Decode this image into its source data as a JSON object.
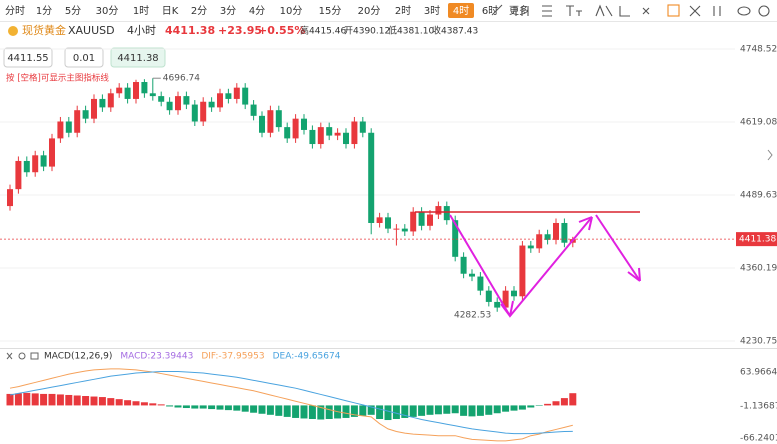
{
  "toolbar": {
    "intervals": [
      "分时",
      "1分",
      "5分",
      "30分",
      "1时",
      "日K",
      "2分",
      "3分",
      "4分",
      "10分",
      "15分",
      "20分",
      "2时",
      "3时",
      "4时",
      "6时",
      "更多"
    ],
    "active": 14
  },
  "header": {
    "name": "现货黄金",
    "symbol": "XAUUSD",
    "period": "4小时",
    "change": "+23.95",
    "percent": "+0.55%",
    "high": "高4415.46",
    "open": "开4390.12",
    "low": "低4381.10",
    "close": "收4387.43"
  },
  "order": {
    "sell": "4411.55",
    "lot": "0.01",
    "buy": "4411.38",
    "hint": "按 [空格]可显示主图指标线"
  },
  "chart_data": [
    {
      "type": "candlestick",
      "up_color": "#e8383d",
      "down_color": "#13a36f",
      "open": [
        4470,
        4500,
        4550,
        4530,
        4560,
        4540,
        4590,
        4620,
        4600,
        4640,
        4625,
        4660,
        4645,
        4670,
        4680,
        4660,
        4690,
        4670,
        4665,
        4655,
        4640,
        4665,
        4650,
        4620,
        4655,
        4645,
        4670,
        4660,
        4680,
        4650,
        4630,
        4600,
        4640,
        4610,
        4590,
        4625,
        4605,
        4580,
        4610,
        4595,
        4600,
        4580,
        4620,
        4600,
        4440,
        4450,
        4430,
        4430,
        4425,
        4460,
        4435,
        4455,
        4470,
        4445,
        4380,
        4350,
        4345,
        4320,
        4300,
        4290,
        4320,
        4310,
        4400,
        4395,
        4420,
        4410,
        4440,
        4405
      ],
      "high": [
        4508,
        4558,
        4558,
        4568,
        4568,
        4598,
        4628,
        4628,
        4648,
        4648,
        4668,
        4668,
        4678,
        4688,
        4688,
        4694,
        4695,
        4696.74,
        4673,
        4663,
        4673,
        4673,
        4658,
        4663,
        4663,
        4678,
        4678,
        4688,
        4688,
        4658,
        4638,
        4648,
        4648,
        4618,
        4633,
        4633,
        4613,
        4618,
        4618,
        4608,
        4608,
        4628,
        4628,
        4608,
        4458,
        4458,
        4438,
        4438,
        4468,
        4468,
        4463,
        4478,
        4478,
        4453,
        4388,
        4358,
        4353,
        4328,
        4308,
        4328,
        4328,
        4408,
        4408,
        4428,
        4428,
        4448,
        4448,
        4415.46
      ],
      "low": [
        4462,
        4492,
        4522,
        4522,
        4532,
        4532,
        4582,
        4592,
        4592,
        4617,
        4617,
        4637,
        4637,
        4662,
        4652,
        4652,
        4662,
        4657,
        4647,
        4632,
        4632,
        4642,
        4612,
        4612,
        4637,
        4637,
        4652,
        4652,
        4642,
        4622,
        4592,
        4592,
        4602,
        4582,
        4582,
        4597,
        4572,
        4572,
        4587,
        4587,
        4572,
        4572,
        4592,
        4420,
        4432,
        4422,
        4400,
        4417,
        4417,
        4427,
        4427,
        4447,
        4437,
        4372,
        4342,
        4337,
        4312,
        4292,
        4282.53,
        4288,
        4302,
        4302,
        4387,
        4387,
        4402,
        4402,
        4397,
        4397
      ],
      "close": [
        4500,
        4550,
        4530,
        4560,
        4540,
        4590,
        4620,
        4600,
        4640,
        4625,
        4660,
        4645,
        4670,
        4680,
        4660,
        4690,
        4670,
        4665,
        4655,
        4640,
        4665,
        4650,
        4620,
        4655,
        4645,
        4670,
        4660,
        4680,
        4650,
        4630,
        4600,
        4640,
        4610,
        4590,
        4625,
        4605,
        4580,
        4610,
        4595,
        4600,
        4580,
        4620,
        4600,
        4440,
        4450,
        4430,
        4430,
        4425,
        4460,
        4435,
        4455,
        4470,
        4445,
        4380,
        4350,
        4345,
        4320,
        4300,
        4290,
        4320,
        4310,
        4400,
        4395,
        4420,
        4410,
        4440,
        4405,
        4411.38
      ],
      "ylim": [
        4218.3,
        4764.5
      ],
      "yticks": [
        4230.75,
        4360.19,
        4489.63,
        4619.08,
        4748.52
      ],
      "marked_high": 17,
      "marked_low": 58
    },
    {
      "type": "macd",
      "legend": [
        "MACD(12,26,9)",
        "MACD:23.39443",
        "DIF:-37.95953",
        "DEA:-49.65674"
      ],
      "legend_colors": [
        "#333333",
        "#a56de2",
        "#f5a15a",
        "#4aa3df"
      ],
      "up_color": "#e8383d",
      "down_color": "#13a36f",
      "histogram": [
        22,
        23,
        24,
        23,
        22,
        22,
        21,
        20,
        19,
        18,
        17,
        16,
        14,
        12,
        10,
        8,
        6,
        4,
        2,
        -2,
        -4,
        -5,
        -6,
        -6,
        -7,
        -8,
        -9,
        -10,
        -12,
        -14,
        -16,
        -18,
        -20,
        -22,
        -24,
        -25,
        -26,
        -27,
        -26,
        -25,
        -24,
        -22,
        -20,
        -18,
        -26,
        -28,
        -26,
        -24,
        -22,
        -20,
        -18,
        -17,
        -16,
        -15,
        -20,
        -21,
        -20,
        -18,
        -15,
        -12,
        -10,
        -8,
        -4,
        -1,
        3,
        8,
        14,
        23.39443
      ],
      "series": [
        {
          "color": "#f5a15a",
          "values": [
            33,
            36,
            40,
            44,
            48,
            52,
            56,
            60,
            63,
            66,
            68,
            69,
            70,
            70,
            69,
            68,
            66,
            64,
            61,
            58,
            55,
            52,
            49,
            46,
            43,
            40,
            37,
            34,
            31,
            28,
            24,
            20,
            16,
            12,
            8,
            4,
            0,
            -4,
            -8,
            -12,
            -15,
            -18,
            -20,
            -22,
            -35,
            -45,
            -50,
            -53,
            -55,
            -56,
            -57,
            -58,
            -58,
            -58,
            -62,
            -65,
            -66,
            -67,
            -68,
            -68,
            -66,
            -64,
            -58,
            -55,
            -50,
            -46,
            -42,
            -37.95953
          ]
        },
        {
          "color": "#4aa3df",
          "values": [
            20,
            23,
            26,
            29,
            32,
            35,
            38,
            41,
            44,
            47,
            50,
            53,
            56,
            58,
            60,
            62,
            63,
            64,
            65,
            65,
            65,
            64,
            63,
            62,
            60,
            58,
            56,
            54,
            51,
            48,
            45,
            42,
            39,
            36,
            33,
            29,
            25,
            21,
            17,
            13,
            9,
            5,
            1,
            -3,
            -7,
            -11,
            -15,
            -19,
            -23,
            -27,
            -30,
            -33,
            -36,
            -39,
            -42,
            -45,
            -47,
            -49,
            -51,
            -53,
            -54,
            -54,
            -54,
            -53,
            -52,
            -51,
            -50,
            -49.65674
          ]
        }
      ],
      "ylim": [
        -73.9,
        102.3
      ],
      "yticks": [
        -66.24016,
        -1.13687,
        63.96641
      ]
    }
  ]
}
